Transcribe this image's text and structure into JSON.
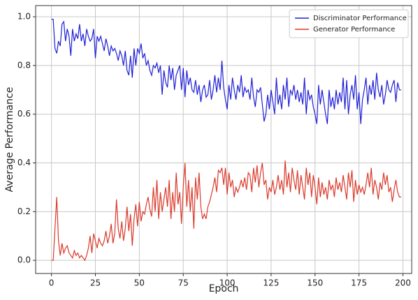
{
  "chart_data": {
    "type": "line",
    "x_label": "Epoch",
    "y_label": "Average Performance",
    "x": [
      0,
      1,
      2,
      3,
      4,
      5,
      6,
      7,
      8,
      9,
      10,
      11,
      12,
      13,
      14,
      15,
      16,
      17,
      18,
      19,
      20,
      21,
      22,
      23,
      24,
      25,
      26,
      27,
      28,
      29,
      30,
      31,
      32,
      33,
      34,
      35,
      36,
      37,
      38,
      39,
      40,
      41,
      42,
      43,
      44,
      45,
      46,
      47,
      48,
      49,
      50,
      51,
      52,
      53,
      54,
      55,
      56,
      57,
      58,
      59,
      60,
      61,
      62,
      63,
      64,
      65,
      66,
      67,
      68,
      69,
      70,
      71,
      72,
      73,
      74,
      75,
      76,
      77,
      78,
      79,
      80,
      81,
      82,
      83,
      84,
      85,
      86,
      87,
      88,
      89,
      90,
      91,
      92,
      93,
      94,
      95,
      96,
      97,
      98,
      99,
      100,
      101,
      102,
      103,
      104,
      105,
      106,
      107,
      108,
      109,
      110,
      111,
      112,
      113,
      114,
      115,
      116,
      117,
      118,
      119,
      120,
      121,
      122,
      123,
      124,
      125,
      126,
      127,
      128,
      129,
      130,
      131,
      132,
      133,
      134,
      135,
      136,
      137,
      138,
      139,
      140,
      141,
      142,
      143,
      144,
      145,
      146,
      147,
      148,
      149,
      150,
      151,
      152,
      153,
      154,
      155,
      156,
      157,
      158,
      159,
      160,
      161,
      162,
      163,
      164,
      165,
      166,
      167,
      168,
      169,
      170,
      171,
      172,
      173,
      174,
      175,
      176,
      177,
      178,
      179,
      180,
      181,
      182,
      183,
      184,
      185,
      186,
      187,
      188,
      189,
      190,
      191,
      192,
      193,
      194,
      195,
      196,
      197,
      198,
      199
    ],
    "series": [
      {
        "name": "Discriminator Performance",
        "color": "#1f1fd6",
        "values": [
          0.99,
          0.99,
          0.87,
          0.85,
          0.9,
          0.88,
          0.97,
          0.98,
          0.9,
          0.95,
          0.92,
          0.84,
          0.95,
          0.9,
          0.93,
          0.91,
          0.97,
          0.9,
          0.93,
          0.88,
          0.95,
          0.92,
          0.9,
          0.91,
          0.95,
          0.83,
          0.92,
          0.9,
          0.92,
          0.89,
          0.86,
          0.91,
          0.88,
          0.84,
          0.88,
          0.86,
          0.87,
          0.85,
          0.82,
          0.86,
          0.84,
          0.8,
          0.86,
          0.78,
          0.76,
          0.84,
          0.75,
          0.87,
          0.8,
          0.87,
          0.85,
          0.89,
          0.83,
          0.85,
          0.8,
          0.82,
          0.78,
          0.76,
          0.8,
          0.79,
          0.81,
          0.77,
          0.8,
          0.68,
          0.78,
          0.73,
          0.71,
          0.8,
          0.74,
          0.79,
          0.7,
          0.76,
          0.78,
          0.8,
          0.7,
          0.79,
          0.67,
          0.78,
          0.72,
          0.75,
          0.7,
          0.69,
          0.74,
          0.68,
          0.72,
          0.65,
          0.7,
          0.72,
          0.67,
          0.68,
          0.74,
          0.66,
          0.7,
          0.76,
          0.69,
          0.75,
          0.7,
          0.82,
          0.71,
          0.66,
          0.62,
          0.72,
          0.66,
          0.75,
          0.7,
          0.66,
          0.72,
          0.69,
          0.76,
          0.67,
          0.71,
          0.69,
          0.7,
          0.66,
          0.75,
          0.67,
          0.63,
          0.7,
          0.69,
          0.71,
          0.64,
          0.57,
          0.6,
          0.68,
          0.62,
          0.7,
          0.65,
          0.6,
          0.75,
          0.64,
          0.68,
          0.62,
          0.72,
          0.66,
          0.75,
          0.63,
          0.7,
          0.68,
          0.72,
          0.66,
          0.7,
          0.65,
          0.69,
          0.64,
          0.75,
          0.6,
          0.7,
          0.66,
          0.68,
          0.63,
          0.6,
          0.56,
          0.72,
          0.64,
          0.7,
          0.65,
          0.6,
          0.56,
          0.7,
          0.63,
          0.67,
          0.62,
          0.7,
          0.64,
          0.69,
          0.65,
          0.75,
          0.62,
          0.74,
          0.6,
          0.68,
          0.72,
          0.66,
          0.76,
          0.62,
          0.69,
          0.56,
          0.66,
          0.7,
          0.75,
          0.64,
          0.72,
          0.68,
          0.74,
          0.66,
          0.77,
          0.7,
          0.67,
          0.72,
          0.64,
          0.68,
          0.74,
          0.7,
          0.69,
          0.72,
          0.74,
          0.65,
          0.73,
          0.7,
          0.7
        ]
      },
      {
        "name": "Generator Performance",
        "color": "#d93a2b",
        "values": [
          0,
          0,
          0.13,
          0.26,
          0.08,
          0.02,
          0.07,
          0.03,
          0.05,
          0.06,
          0.03,
          0.02,
          0.01,
          0.04,
          0.02,
          0.03,
          0.01,
          0.02,
          0.01,
          0.0,
          0.02,
          0.05,
          0.1,
          0.03,
          0.11,
          0.08,
          0.05,
          0.09,
          0.07,
          0.06,
          0.08,
          0.12,
          0.07,
          0.1,
          0.15,
          0.07,
          0.11,
          0.25,
          0.13,
          0.09,
          0.16,
          0.08,
          0.13,
          0.22,
          0.12,
          0.19,
          0.06,
          0.17,
          0.23,
          0.14,
          0.24,
          0.16,
          0.2,
          0.19,
          0.23,
          0.26,
          0.21,
          0.18,
          0.3,
          0.2,
          0.33,
          0.17,
          0.28,
          0.2,
          0.25,
          0.3,
          0.22,
          0.33,
          0.17,
          0.28,
          0.2,
          0.36,
          0.23,
          0.28,
          0.15,
          0.3,
          0.4,
          0.22,
          0.33,
          0.2,
          0.3,
          0.13,
          0.34,
          0.25,
          0.36,
          0.22,
          0.17,
          0.19,
          0.17,
          0.22,
          0.24,
          0.27,
          0.3,
          0.34,
          0.28,
          0.37,
          0.36,
          0.38,
          0.31,
          0.38,
          0.27,
          0.36,
          0.3,
          0.33,
          0.26,
          0.3,
          0.28,
          0.3,
          0.33,
          0.3,
          0.34,
          0.29,
          0.36,
          0.35,
          0.28,
          0.38,
          0.32,
          0.39,
          0.3,
          0.36,
          0.4,
          0.31,
          0.33,
          0.25,
          0.3,
          0.28,
          0.33,
          0.27,
          0.3,
          0.35,
          0.29,
          0.33,
          0.27,
          0.41,
          0.3,
          0.36,
          0.28,
          0.38,
          0.33,
          0.29,
          0.37,
          0.27,
          0.35,
          0.3,
          0.25,
          0.38,
          0.31,
          0.36,
          0.26,
          0.35,
          0.3,
          0.23,
          0.34,
          0.26,
          0.32,
          0.27,
          0.3,
          0.25,
          0.33,
          0.29,
          0.31,
          0.26,
          0.34,
          0.29,
          0.32,
          0.28,
          0.35,
          0.3,
          0.25,
          0.36,
          0.3,
          0.37,
          0.24,
          0.33,
          0.27,
          0.31,
          0.28,
          0.3,
          0.27,
          0.31,
          0.36,
          0.3,
          0.38,
          0.27,
          0.33,
          0.3,
          0.25,
          0.32,
          0.29,
          0.36,
          0.31,
          0.35,
          0.28,
          0.3,
          0.24,
          0.29,
          0.33,
          0.28,
          0.26,
          0.26
        ]
      }
    ],
    "xlim": [
      -9,
      205
    ],
    "xticks": [
      0,
      25,
      50,
      75,
      100,
      125,
      150,
      175,
      200
    ],
    "ylim": [
      -0.054,
      1.046
    ],
    "yticks": [
      {
        "value": 0,
        "label": "0.0"
      },
      0.2,
      0.4,
      0.6,
      0.8,
      {
        "value": 1,
        "label": "1.0"
      }
    ],
    "grid": true,
    "legend": "upper-right"
  }
}
